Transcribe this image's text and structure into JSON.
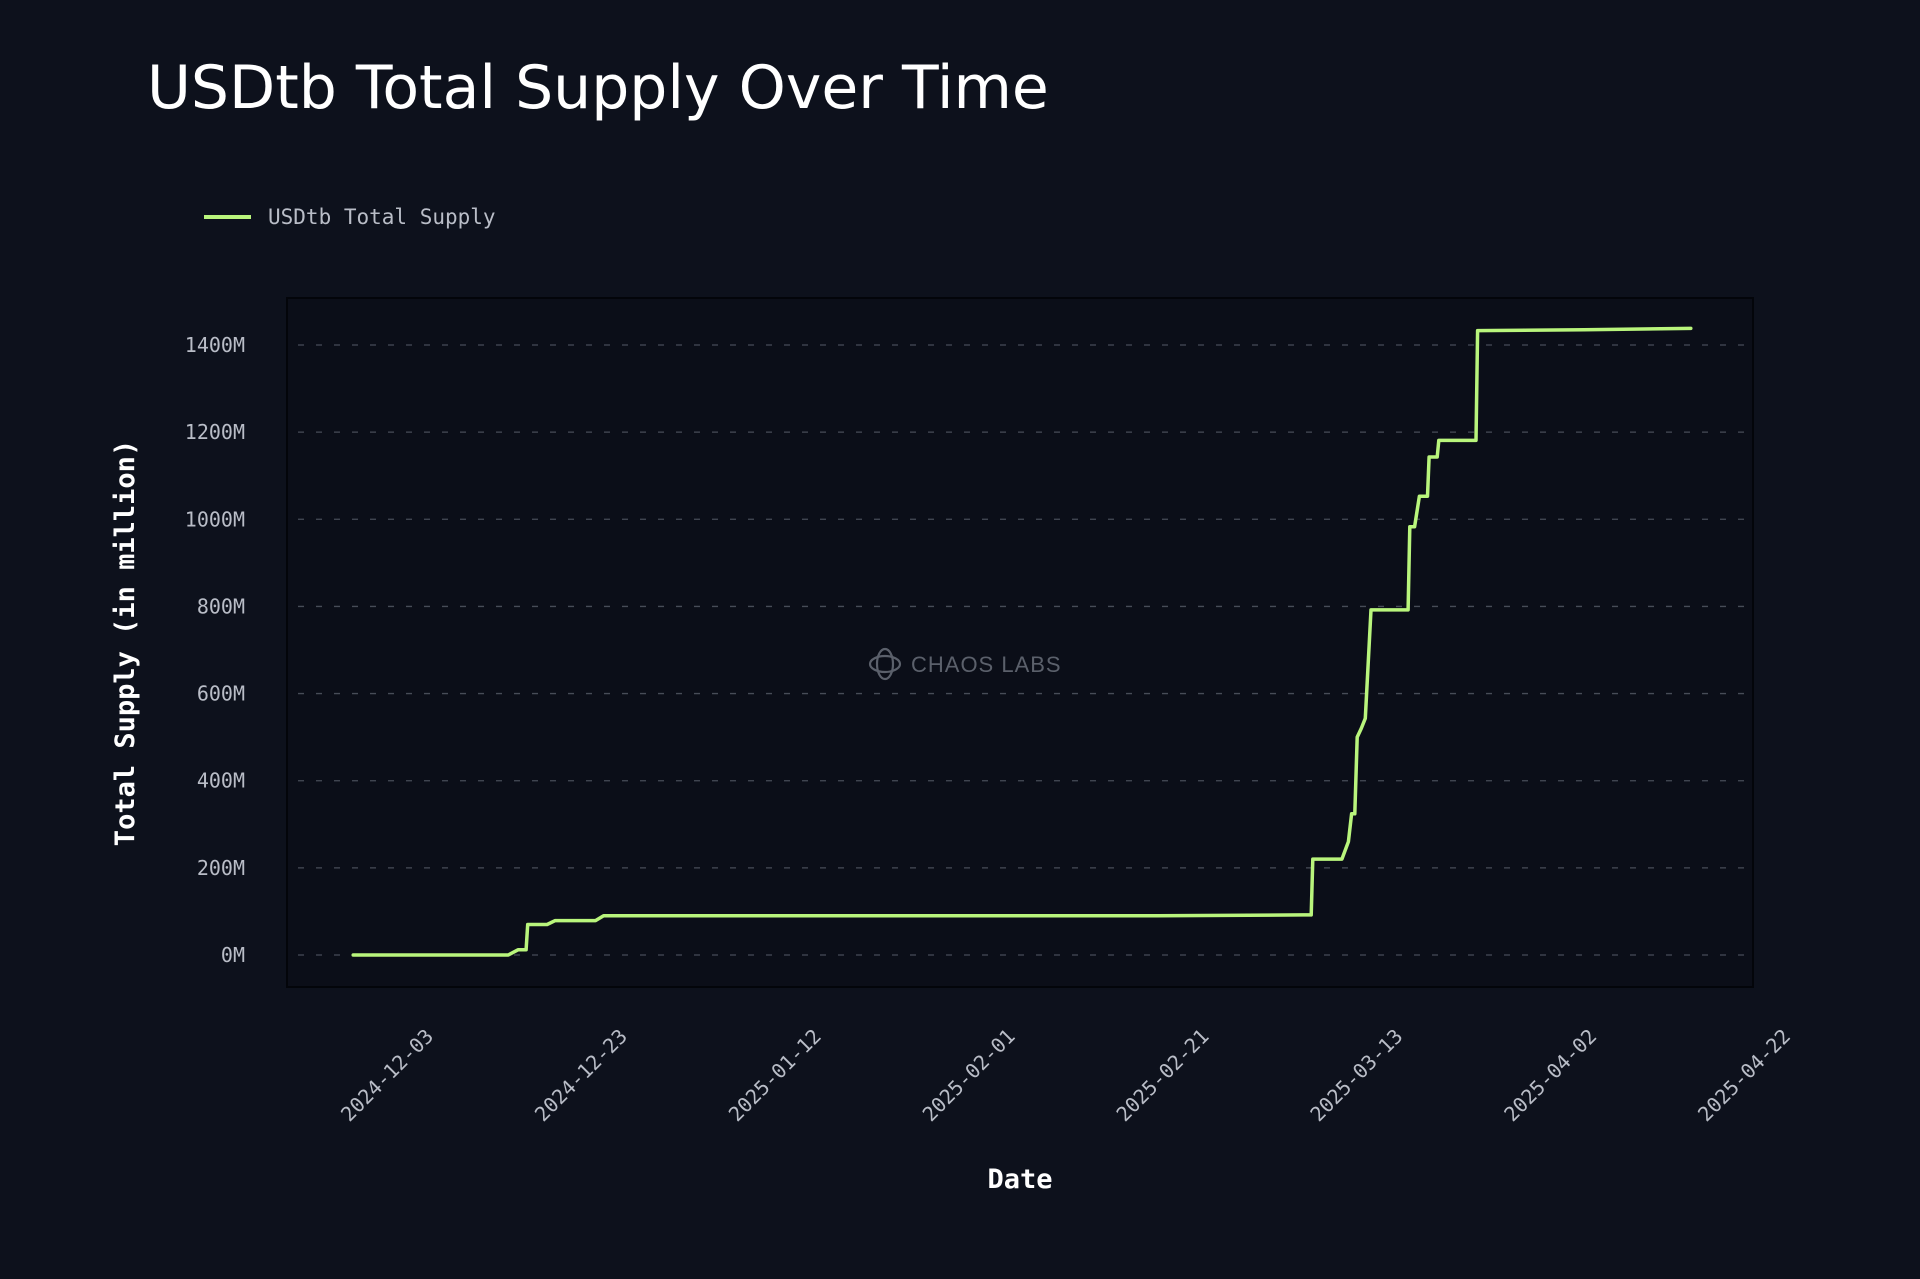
{
  "chart_data": {
    "type": "line",
    "title": "USDtb Total Supply Over Time",
    "xlabel": "Date",
    "ylabel": "Total Supply (in million)",
    "legend": {
      "placement": "top-left",
      "entries": [
        "USDtb Total Supply"
      ]
    },
    "watermark": "CHAOS LABS",
    "grid": {
      "y": true,
      "x": false,
      "style": "dashed"
    },
    "colors": {
      "background": "#0d111c",
      "plot_background": "#0b0e18",
      "line": "#b9f57c",
      "grid": "#474c57",
      "text": "#b9bdc7"
    },
    "ylim": [
      0,
      1400
    ],
    "y_ticks": [
      0,
      200,
      400,
      600,
      800,
      1000,
      1200,
      1400
    ],
    "y_tick_labels": [
      "0M",
      "200M",
      "400M",
      "600M",
      "800M",
      "1000M",
      "1200M",
      "1400M"
    ],
    "x_ticks": [
      "2024-12-03",
      "2024-12-23",
      "2025-01-12",
      "2025-02-01",
      "2025-02-21",
      "2025-03-13",
      "2025-04-02",
      "2025-04-22"
    ],
    "series": [
      {
        "name": "USDtb Total Supply",
        "x": [
          "2024-11-29",
          "2024-12-15",
          "2024-12-16",
          "2024-12-16T20:00",
          "2024-12-17",
          "2024-12-19",
          "2024-12-19T20:00",
          "2024-12-24",
          "2024-12-24T20:00",
          "2025-02-20",
          "2025-03-07",
          "2025-03-07T20:00",
          "2025-03-08",
          "2025-03-11",
          "2025-03-11T16:00",
          "2025-03-12",
          "2025-03-12T08:00",
          "2025-03-12T14:00",
          "2025-03-13",
          "2025-03-13T10:00",
          "2025-03-14",
          "2025-03-17T20:00",
          "2025-03-18",
          "2025-03-18T12:00",
          "2025-03-19",
          "2025-03-19T20:00",
          "2025-03-20",
          "2025-03-20T20:00",
          "2025-03-21",
          "2025-03-24T20:00",
          "2025-03-25",
          "2025-04-05",
          "2025-04-16"
        ],
        "values": [
          0,
          0,
          12,
          12,
          70,
          70,
          79,
          79,
          90,
          90,
          92,
          92,
          220,
          220,
          260,
          324,
          324,
          500,
          520,
          543,
          792,
          792,
          983,
          983,
          1053,
          1053,
          1143,
          1143,
          1181,
          1181,
          1433,
          1435,
          1438
        ]
      }
    ]
  }
}
